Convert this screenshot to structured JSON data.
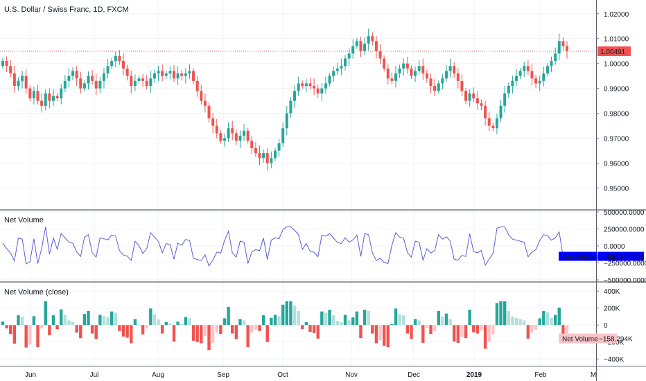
{
  "chart_data": [
    {
      "type": "candlestick",
      "title": "U.S. Dollar / Swiss Franc, 1D, FXCM",
      "y_ticks": [
        "1.02000",
        "1.01000",
        "1.00000",
        "0.99000",
        "0.98000",
        "0.97000",
        "0.96000",
        "0.95000"
      ],
      "y_tick_values": [
        1.02,
        1.01,
        1.0,
        0.99,
        0.98,
        0.97,
        0.96,
        0.95
      ],
      "ylim": [
        0.9415,
        1.0255
      ],
      "last_price": "1.00491",
      "last_price_value": 1.00491,
      "up_color": "#26a69a",
      "down_color": "#ef5350",
      "closes": [
        1.001,
        0.999,
        0.996,
        0.991,
        0.993,
        0.995,
        0.99,
        0.986,
        0.989,
        0.985,
        0.983,
        0.988,
        0.985,
        0.987,
        0.986,
        0.99,
        0.993,
        0.995,
        0.997,
        0.994,
        0.99,
        0.992,
        0.995,
        0.993,
        0.99,
        0.993,
        0.996,
        0.999,
        1.001,
        1.003,
        1.001,
        0.998,
        0.995,
        0.991,
        0.993,
        0.994,
        0.993,
        0.991,
        0.994,
        0.996,
        0.997,
        0.995,
        0.996,
        0.997,
        0.994,
        0.996,
        0.995,
        0.996,
        0.997,
        0.993,
        0.989,
        0.985,
        0.983,
        0.978,
        0.975,
        0.972,
        0.969,
        0.97,
        0.974,
        0.972,
        0.969,
        0.971,
        0.973,
        0.969,
        0.966,
        0.964,
        0.962,
        0.964,
        0.96,
        0.962,
        0.965,
        0.968,
        0.974,
        0.98,
        0.985,
        0.989,
        0.992,
        0.991,
        0.992,
        0.991,
        0.99,
        0.988,
        0.99,
        0.992,
        0.995,
        0.997,
        0.998,
        0.999,
        1.002,
        1.004,
        1.007,
        1.009,
        1.005,
        1.008,
        1.011,
        1.009,
        1.005,
        1.002,
        0.998,
        0.994,
        0.993,
        0.996,
        0.998,
        1.0,
        0.998,
        0.995,
        0.997,
        0.999,
        0.996,
        0.994,
        0.991,
        0.989,
        0.992,
        0.994,
        0.997,
        0.999,
        0.996,
        0.993,
        0.989,
        0.985,
        0.988,
        0.986,
        0.984,
        0.983,
        0.978,
        0.975,
        0.974,
        0.978,
        0.983,
        0.988,
        0.991,
        0.993,
        0.995,
        0.997,
        0.999,
        0.997,
        0.994,
        0.992,
        0.993,
        0.996,
        0.999,
        1.001,
        1.004,
        1.009,
        1.007,
        1.005
      ]
    },
    {
      "type": "line",
      "title": "Net Volume",
      "y_ticks": [
        "500000.0000",
        "250000.0000",
        "0.0000",
        "−250000.0000",
        "−500000.0000"
      ],
      "y_tick_values": [
        500000,
        250000,
        0,
        -250000,
        -500000
      ],
      "ylim": [
        -520000,
        520000
      ],
      "line_color": "#5b5bd6",
      "last_label": "Net Volume",
      "last_value": "−158294.0000",
      "last_value_num": -158294
    },
    {
      "type": "bar",
      "title": "Net Volume (close)",
      "y_ticks": [
        "400K",
        "200K",
        "0",
        "−200K",
        "−400K"
      ],
      "y_tick_values": [
        400000,
        200000,
        0,
        -200000,
        -400000
      ],
      "ylim": [
        -480000,
        500000
      ],
      "up_color": "#26a69a",
      "up_light_color": "#b2dfdb",
      "down_color": "#ef5350",
      "down_light_color": "#f7c5c8",
      "last_label": "Net Volume",
      "last_value": "−158.294K",
      "last_value_num": -158294
    }
  ],
  "x_axis": {
    "labels": [
      "Jun",
      "Jul",
      "Aug",
      "Sep",
      "Oct",
      "Nov",
      "Dec",
      "2019",
      "Feb",
      "M"
    ],
    "bold_index": 7
  }
}
